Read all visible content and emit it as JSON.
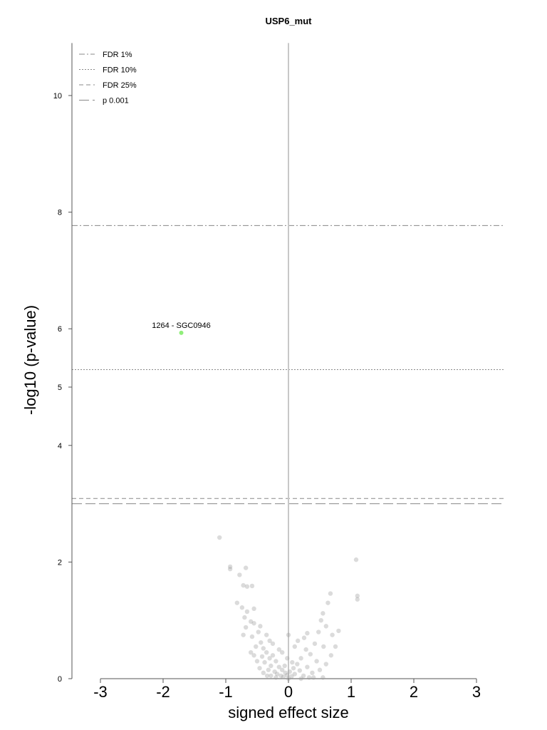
{
  "chart_data": {
    "type": "scatter",
    "title": "USP6_mut",
    "xlabel": "signed effect size",
    "ylabel": "-log10 (p-value)",
    "xlim": [
      -3.4,
      3.5
    ],
    "ylim": [
      0,
      10.9
    ],
    "x_ticks": [
      -3,
      -2,
      -1,
      0,
      1,
      2,
      3
    ],
    "x_tick_labels": [
      "-3",
      "-2",
      "-1",
      "0",
      "1",
      "2",
      "3"
    ],
    "y_ticks": [
      0,
      2,
      4,
      5,
      6,
      8,
      10
    ],
    "y_tick_labels": [
      "0",
      "2",
      "4",
      "5",
      "6",
      "8",
      "10"
    ],
    "grid": false,
    "zero_line": 0,
    "legend_position": "top-left",
    "thresholds": [
      {
        "name": "FDR 1%",
        "value": 7.77,
        "style": "dashdot",
        "color": "#888888"
      },
      {
        "name": "FDR 10%",
        "value": 5.3,
        "style": "dotted",
        "color": "#888888"
      },
      {
        "name": "FDR 25%",
        "value": 3.09,
        "style": "dashed",
        "color": "#888888"
      },
      {
        "name": "p 0.001",
        "value": 3.0,
        "style": "longdash",
        "color": "#888888"
      }
    ],
    "highlighted": [
      {
        "label": "1264 - SGC0946",
        "x": -1.71,
        "y": 5.93,
        "color": "#90ee7a"
      }
    ],
    "points_color": "#999999",
    "points": [
      [
        -1.1,
        2.42
      ],
      [
        -0.93,
        1.92
      ],
      [
        -0.93,
        1.88
      ],
      [
        -0.68,
        1.9
      ],
      [
        -0.78,
        1.78
      ],
      [
        -0.66,
        1.58
      ],
      [
        -0.58,
        1.59
      ],
      [
        -0.72,
        1.6
      ],
      [
        -0.82,
        1.3
      ],
      [
        -0.74,
        1.22
      ],
      [
        -0.66,
        1.15
      ],
      [
        -0.55,
        1.2
      ],
      [
        -0.6,
        0.98
      ],
      [
        -0.68,
        0.88
      ],
      [
        -0.72,
        0.75
      ],
      [
        -0.55,
        0.95
      ],
      [
        -0.48,
        0.8
      ],
      [
        -0.58,
        0.72
      ],
      [
        -0.44,
        0.62
      ],
      [
        -0.4,
        0.52
      ],
      [
        -0.52,
        0.55
      ],
      [
        -0.35,
        0.45
      ],
      [
        -0.42,
        0.38
      ],
      [
        -0.3,
        0.35
      ],
      [
        -0.38,
        0.28
      ],
      [
        -0.25,
        0.4
      ],
      [
        -0.28,
        0.22
      ],
      [
        -0.32,
        0.15
      ],
      [
        -0.2,
        0.3
      ],
      [
        -0.22,
        0.12
      ],
      [
        -0.15,
        0.2
      ],
      [
        -0.18,
        0.08
      ],
      [
        -0.1,
        0.15
      ],
      [
        -0.12,
        0.05
      ],
      [
        -0.05,
        0.1
      ],
      [
        -0.08,
        0.03
      ],
      [
        -0.02,
        0.06
      ],
      [
        0.02,
        0.12
      ],
      [
        0.05,
        0.04
      ],
      [
        0.08,
        0.18
      ],
      [
        0.1,
        0.08
      ],
      [
        0.14,
        0.25
      ],
      [
        0.18,
        0.14
      ],
      [
        0.2,
        0.35
      ],
      [
        0.24,
        0.05
      ],
      [
        0.28,
        0.5
      ],
      [
        0.3,
        0.2
      ],
      [
        0.35,
        0.42
      ],
      [
        0.38,
        0.1
      ],
      [
        0.42,
        0.6
      ],
      [
        0.45,
        0.3
      ],
      [
        0.48,
        0.8
      ],
      [
        0.52,
        1.0
      ],
      [
        0.55,
        1.12
      ],
      [
        0.56,
        0.55
      ],
      [
        0.6,
        0.9
      ],
      [
        0.63,
        1.3
      ],
      [
        0.67,
        1.46
      ],
      [
        0.7,
        0.75
      ],
      [
        0.75,
        0.55
      ],
      [
        0.8,
        0.82
      ],
      [
        0.4,
        0.02
      ],
      [
        0.25,
        0.7
      ],
      [
        0.1,
        0.55
      ],
      [
        -0.02,
        0.35
      ],
      [
        -0.15,
        0.5
      ],
      [
        -0.3,
        0.65
      ],
      [
        -0.45,
        0.9
      ],
      [
        -0.35,
        0.75
      ],
      [
        -0.25,
        0.6
      ],
      [
        -0.1,
        0.45
      ],
      [
        0.0,
        0.75
      ],
      [
        0.15,
        0.65
      ],
      [
        0.3,
        0.78
      ],
      [
        -0.5,
        0.3
      ],
      [
        -0.6,
        0.45
      ],
      [
        -0.4,
        0.1
      ],
      [
        -0.28,
        0.05
      ],
      [
        0.6,
        0.25
      ],
      [
        0.5,
        0.15
      ],
      [
        1.08,
        2.04
      ],
      [
        1.1,
        1.42
      ],
      [
        1.1,
        1.36
      ],
      [
        0.55,
        0.02
      ],
      [
        0.0,
        0.0
      ],
      [
        -0.06,
        0.22
      ],
      [
        0.06,
        0.28
      ],
      [
        -0.34,
        0.05
      ],
      [
        0.33,
        0.02
      ],
      [
        -0.46,
        0.18
      ],
      [
        -0.2,
        0.02
      ],
      [
        0.2,
        0.0
      ],
      [
        -0.55,
        0.4
      ],
      [
        0.68,
        0.4
      ],
      [
        -0.7,
        1.05
      ]
    ]
  }
}
